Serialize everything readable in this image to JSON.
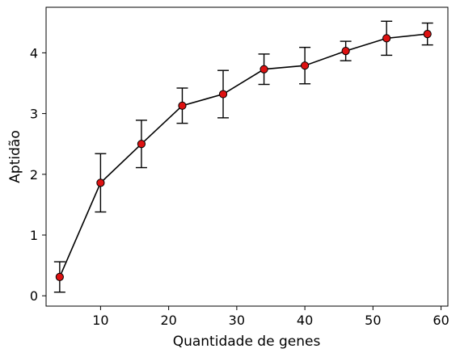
{
  "chart_data": {
    "type": "line",
    "title": "",
    "xlabel": "Quantidade de genes",
    "ylabel": "Aptidão",
    "xlim": [
      2,
      61
    ],
    "ylim": [
      -0.17,
      4.75
    ],
    "x_ticks": [
      10,
      20,
      30,
      40,
      50,
      60
    ],
    "y_ticks": [
      0,
      1,
      2,
      3,
      4
    ],
    "grid": false,
    "legend": "none",
    "colors": {
      "line": "#000000",
      "marker_fill": "#dd1111",
      "marker_edge": "#000000",
      "error_bar": "#000000"
    },
    "series": [
      {
        "x": [
          4,
          10,
          16,
          22,
          28,
          34,
          40,
          46,
          52,
          58
        ],
        "y": [
          0.31,
          1.86,
          2.5,
          3.13,
          3.32,
          3.73,
          3.79,
          4.03,
          4.24,
          4.31
        ],
        "error": [
          0.25,
          0.48,
          0.39,
          0.29,
          0.39,
          0.25,
          0.3,
          0.16,
          0.28,
          0.18
        ]
      }
    ]
  }
}
